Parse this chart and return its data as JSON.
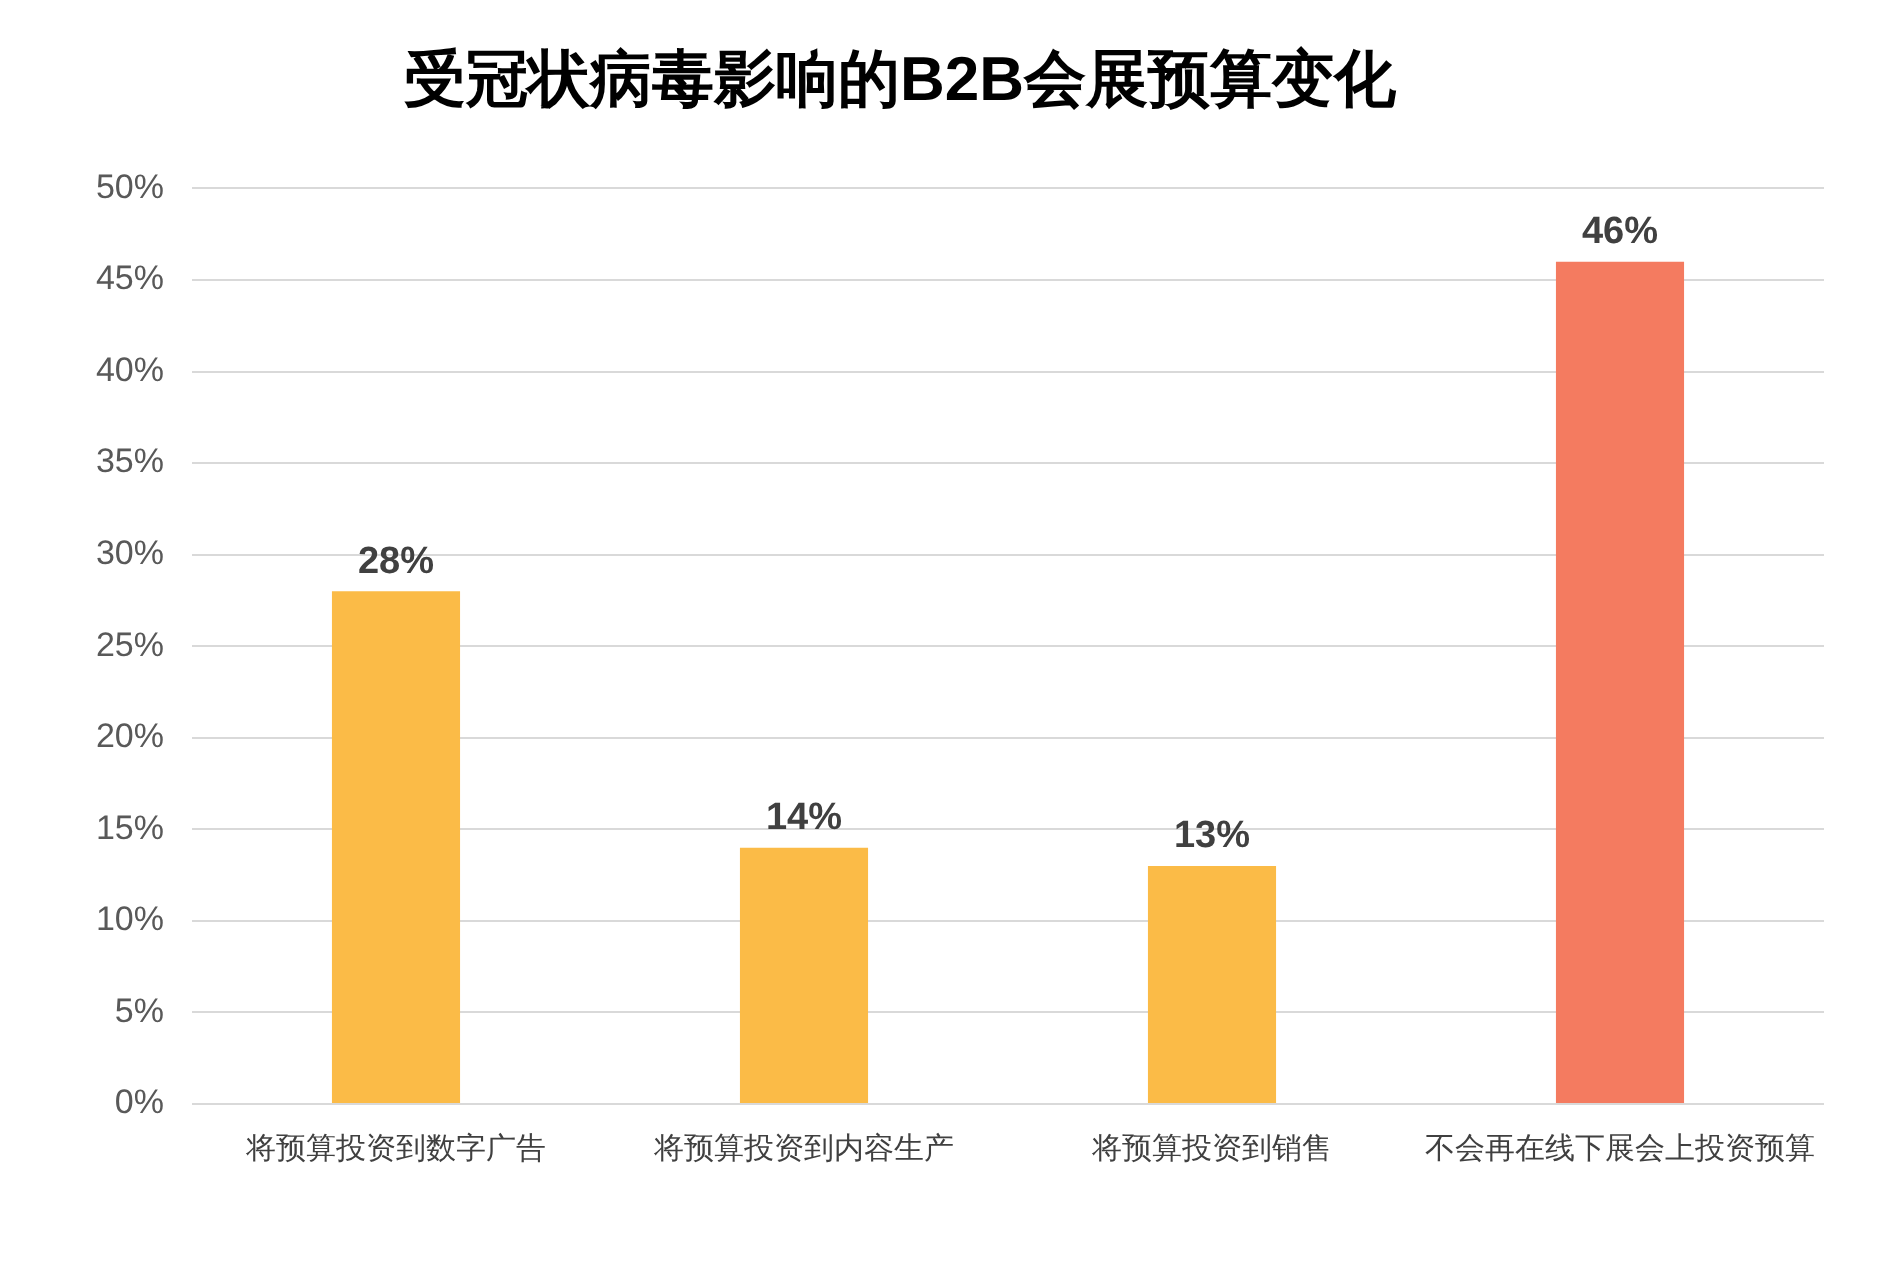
{
  "chart_data": {
    "type": "bar",
    "title": "受冠状病毒影响的B2B会展预算变化",
    "categories": [
      "将预算投资到数字广告",
      "将预算投资到内容生产",
      "将预算投资到销售",
      "不会再在线下展会上投资预算"
    ],
    "values": [
      28,
      14,
      13,
      46
    ],
    "colors": [
      "#fbbb47",
      "#fbbb47",
      "#fbbb47",
      "#f47b60"
    ],
    "value_labels": [
      "28%",
      "14%",
      "13%",
      "46%"
    ],
    "ylim": [
      0,
      50
    ],
    "yticks": [
      {
        "value": 0,
        "label": "0%"
      },
      {
        "value": 5,
        "label": "5%"
      },
      {
        "value": 10,
        "label": "10%"
      },
      {
        "value": 15,
        "label": "15%"
      },
      {
        "value": 20,
        "label": "20%"
      },
      {
        "value": 25,
        "label": "25%"
      },
      {
        "value": 30,
        "label": "30%"
      },
      {
        "value": 35,
        "label": "35%"
      },
      {
        "value": 40,
        "label": "40%"
      },
      {
        "value": 45,
        "label": "45%"
      },
      {
        "value": 50,
        "label": "50%"
      }
    ],
    "grid": "y"
  }
}
